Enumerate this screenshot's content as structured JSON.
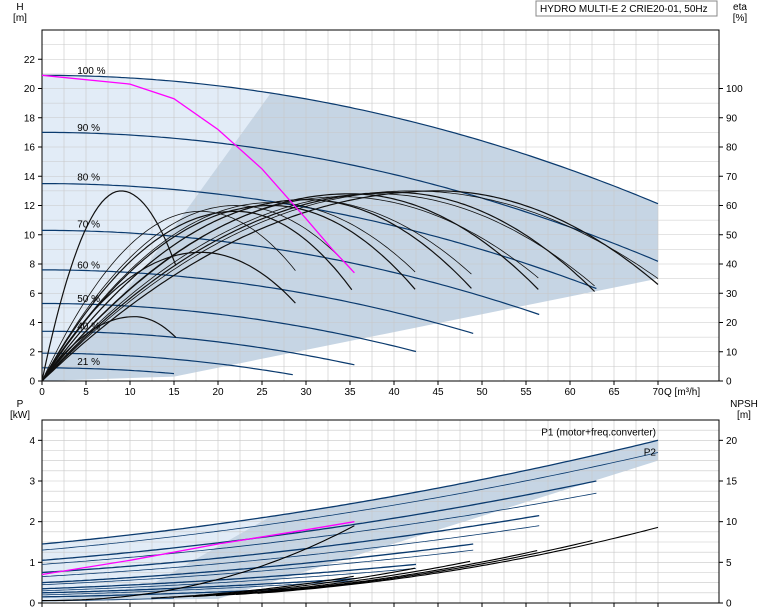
{
  "title": "HYDRO MULTI-E 2 CRIE20-01, 50Hz",
  "colors": {
    "curve": "#0a3a6e",
    "tuning": "#ff00ff",
    "fill_dark": "#c6d5e4",
    "fill_light": "#e2ecf7",
    "grid": "#c8c8c8"
  },
  "chart_data": [
    {
      "type": "line",
      "name": "pump-curve",
      "ylabel": "H",
      "yunit": "[m]",
      "y2label": "eta",
      "y2unit": "[%]",
      "xlabel": "Q [m³/h]",
      "xlim": [
        0,
        72
      ],
      "ylim": [
        0,
        24
      ],
      "y2lim": [
        0,
        120
      ],
      "xticks": [
        "0",
        "5",
        "10",
        "15",
        "20",
        "25",
        "30",
        "35",
        "40",
        "45",
        "50",
        "55",
        "60",
        "65",
        "70"
      ],
      "yticks": [
        "0",
        "2",
        "4",
        "6",
        "8",
        "10",
        "12",
        "14",
        "16",
        "18",
        "20",
        "22"
      ],
      "y2ticks": [
        "0",
        "10",
        "20",
        "30",
        "40",
        "50",
        "60",
        "70",
        "80",
        "90",
        "100"
      ],
      "grid": true,
      "speed_labels": [
        {
          "text": "100 %",
          "x": 4,
          "y": 20.8
        },
        {
          "text": "90 %",
          "x": 4,
          "y": 16.9
        },
        {
          "text": "80 %",
          "x": 4,
          "y": 13.5
        },
        {
          "text": "70 %",
          "x": 4,
          "y": 10.3
        },
        {
          "text": "60 %",
          "x": 4,
          "y": 7.5
        },
        {
          "text": "50 %",
          "x": 4,
          "y": 5.2
        },
        {
          "text": "40 %",
          "x": 4,
          "y": 3.3
        },
        {
          "text": "21 %",
          "x": 4,
          "y": 0.9
        }
      ],
      "head_curves": [
        {
          "speed": 1.0,
          "h0": 20.9,
          "qmax": 70
        },
        {
          "speed": 0.9,
          "h0": 17.0,
          "qmax": 70
        },
        {
          "speed": 0.8,
          "h0": 13.5,
          "qmax": 63
        },
        {
          "speed": 0.7,
          "h0": 10.3,
          "qmax": 56.5
        },
        {
          "speed": 0.6,
          "h0": 7.6,
          "qmax": 49
        },
        {
          "speed": 0.5,
          "h0": 5.3,
          "qmax": 42.5
        },
        {
          "speed": 0.4,
          "h0": 3.4,
          "qmax": 35.5
        },
        {
          "speed": 0.3,
          "h0": 1.9,
          "qmax": 28.5
        },
        {
          "speed": 0.21,
          "h0": 0.9,
          "qmax": 15
        }
      ],
      "efficiency_curves": [
        {
          "peak_q": 9,
          "peak_eta": 65,
          "end_q": 15.5,
          "end_eta": 37
        },
        {
          "peak_q": 10.5,
          "peak_eta": 22,
          "end_q": 15.5,
          "end_eta": 14
        },
        {
          "peak_q": 18,
          "peak_eta": 44,
          "end_q": 29,
          "end_eta": 26
        },
        {
          "peak_q": 22,
          "peak_eta": 58,
          "end_q": 35.5,
          "end_eta": 30
        },
        {
          "peak_q": 26,
          "peak_eta": 60,
          "end_q": 42.5,
          "end_eta": 31
        },
        {
          "peak_q": 30,
          "peak_eta": 62,
          "end_q": 49,
          "end_eta": 31
        },
        {
          "peak_q": 35,
          "peak_eta": 64,
          "end_q": 56.5,
          "end_eta": 31
        },
        {
          "peak_q": 40,
          "peak_eta": 64.5,
          "end_q": 63,
          "end_eta": 30
        },
        {
          "peak_q": 45,
          "peak_eta": 65,
          "end_q": 70,
          "end_eta": 33
        },
        {
          "peak_q": 42,
          "peak_eta": 65,
          "end_q": 70,
          "end_eta": 35
        },
        {
          "peak_q": 38,
          "peak_eta": 64,
          "end_q": 63,
          "end_eta": 32
        },
        {
          "peak_q": 34,
          "peak_eta": 63,
          "end_q": 56.5,
          "end_eta": 35
        },
        {
          "peak_q": 30,
          "peak_eta": 62,
          "end_q": 49,
          "end_eta": 36
        },
        {
          "peak_q": 26,
          "peak_eta": 61,
          "end_q": 42.5,
          "end_eta": 37
        },
        {
          "peak_q": 22,
          "peak_eta": 60,
          "end_q": 35.5,
          "end_eta": 37
        },
        {
          "peak_q": 18,
          "peak_eta": 58,
          "end_q": 29,
          "end_eta": 37
        }
      ],
      "tuning_curve": [
        [
          0,
          20.9
        ],
        [
          10,
          20.3
        ],
        [
          15,
          19.3
        ],
        [
          20,
          17.2
        ],
        [
          25,
          14.5
        ],
        [
          30,
          11.1
        ],
        [
          33,
          9.0
        ],
        [
          35.5,
          7.4
        ]
      ]
    },
    {
      "type": "line",
      "name": "power-curve",
      "ylabel": "P",
      "yunit": "[kW]",
      "y2label": "NPSH",
      "y2unit": "[m]",
      "xlim": [
        0,
        72
      ],
      "ylim": [
        0,
        4.5
      ],
      "y2lim": [
        0,
        22.5
      ],
      "yticks": [
        "0",
        "1",
        "2",
        "3",
        "4"
      ],
      "y2ticks": [
        "0",
        "5",
        "10",
        "15",
        "20"
      ],
      "grid": true,
      "series_labels": [
        {
          "text": "P1 (motor+freq.converter)",
          "x": 70,
          "y": 4.0
        },
        {
          "text": "P2",
          "x": 70,
          "y": 3.5
        }
      ],
      "power_curves": [
        {
          "p0": 1.45,
          "p1": 4.0,
          "qmax": 70
        },
        {
          "p0": 1.3,
          "p1": 3.7,
          "qmax": 70
        },
        {
          "p0": 1.05,
          "p1": 3.0,
          "qmax": 63
        },
        {
          "p0": 0.95,
          "p1": 2.7,
          "qmax": 63
        },
        {
          "p0": 0.75,
          "p1": 2.15,
          "qmax": 56.5
        },
        {
          "p0": 0.65,
          "p1": 1.9,
          "qmax": 56.5
        },
        {
          "p0": 0.5,
          "p1": 1.45,
          "qmax": 49
        },
        {
          "p0": 0.45,
          "p1": 1.3,
          "qmax": 49
        },
        {
          "p0": 0.35,
          "p1": 0.95,
          "qmax": 42.5
        },
        {
          "p0": 0.3,
          "p1": 0.85,
          "qmax": 42.5
        },
        {
          "p0": 0.25,
          "p1": 0.6,
          "qmax": 35.5
        },
        {
          "p0": 0.2,
          "p1": 0.55,
          "qmax": 35.5
        },
        {
          "p0": 0.15,
          "p1": 0.35,
          "qmax": 28.5
        },
        {
          "p0": 0.05,
          "p1": 0.12,
          "qmax": 15
        }
      ],
      "tuning_power": [
        [
          0,
          0.7
        ],
        [
          10,
          1.05
        ],
        [
          20,
          1.45
        ],
        [
          30,
          1.8
        ],
        [
          35.5,
          2.0
        ]
      ],
      "npsh_curves": [
        {
          "n0": 0.3,
          "n1": 9.3,
          "qmax": 70
        },
        {
          "n0": 0.3,
          "n1": 7.8,
          "qmax": 63
        },
        {
          "n0": 0.3,
          "n1": 6.5,
          "qmax": 56.5
        },
        {
          "n0": 0.3,
          "n1": 5.2,
          "qmax": 49
        },
        {
          "n0": 0.3,
          "n1": 4.3,
          "qmax": 42.5
        },
        {
          "n0": 0.3,
          "n1": 3.3,
          "qmax": 35.5
        },
        {
          "n0": 0.3,
          "n1": 9.5,
          "qmax": 35.5
        }
      ]
    }
  ]
}
